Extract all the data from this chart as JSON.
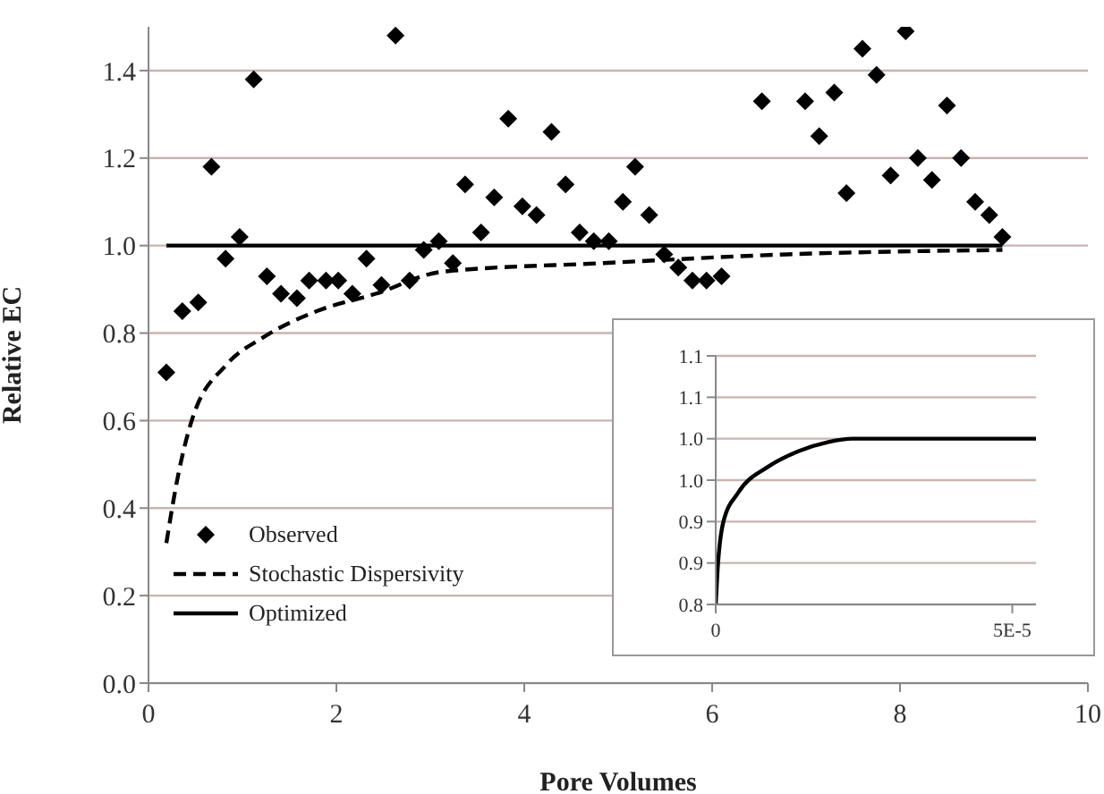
{
  "chart_data": [
    {
      "type": "scatter",
      "xlabel": "Pore Volumes",
      "ylabel": "Relative  EC",
      "xlim": [
        0,
        10
      ],
      "xticks": [
        0,
        2,
        4,
        6,
        8,
        10
      ],
      "ylim": [
        0,
        1.5
      ],
      "yticks": [
        {
          "value": 0,
          "label": "0.0"
        },
        {
          "value": 0.2,
          "label": "0.2"
        },
        {
          "value": 0.4,
          "label": "0.4"
        },
        {
          "value": 0.6,
          "label": "0.6"
        },
        {
          "value": 0.8,
          "label": "0.8"
        },
        {
          "value": 1,
          "label": "1.0"
        },
        {
          "value": 1.2,
          "label": "1.2"
        },
        {
          "value": 1.4,
          "label": "1.4"
        }
      ],
      "grid": "y",
      "legend": "bottom left",
      "series": [
        {
          "name": "Observed",
          "marker": "diamond",
          "color": "#000000",
          "x": [
            0.19,
            0.36,
            0.53,
            0.67,
            0.82,
            0.97,
            1.12,
            1.26,
            1.41,
            1.58,
            1.71,
            1.89,
            2.02,
            2.17,
            2.32,
            2.48,
            2.63,
            2.78,
            2.93,
            3.09,
            3.24,
            3.37,
            3.54,
            3.68,
            3.83,
            3.98,
            4.13,
            4.29,
            4.44,
            4.59,
            4.74,
            4.9,
            5.05,
            5.18,
            5.33,
            5.49,
            5.64,
            5.79,
            5.94,
            6.1,
            6.53,
            6.99,
            7.14,
            7.3,
            7.43,
            7.6,
            7.75,
            7.9,
            8.06,
            8.19,
            8.34,
            8.5,
            8.65,
            8.8,
            8.95,
            9.09
          ],
          "values": [
            0.71,
            0.85,
            0.87,
            1.18,
            0.97,
            1.02,
            1.38,
            0.93,
            0.89,
            0.88,
            0.92,
            0.92,
            0.92,
            0.89,
            0.97,
            0.91,
            1.48,
            0.92,
            0.99,
            1.01,
            0.96,
            1.14,
            1.03,
            1.11,
            1.29,
            1.09,
            1.07,
            1.26,
            1.14,
            1.03,
            1.01,
            1.01,
            1.1,
            1.18,
            1.07,
            0.98,
            0.95,
            0.92,
            0.92,
            0.93,
            1.33,
            1.33,
            1.25,
            1.35,
            1.12,
            1.45,
            1.39,
            1.16,
            1.49,
            1.2,
            1.15,
            1.32,
            1.2,
            1.1,
            1.07,
            1.02
          ]
        },
        {
          "name": "Stochastic Dispersivity",
          "type": "line",
          "line_style": "dashed",
          "marker": "none",
          "color": "#000000",
          "x": [
            0.19,
            0.32,
            0.46,
            0.84,
            1.22,
            1.79,
            2.42,
            3.12,
            4.84,
            6.8,
            9.09
          ],
          "values": [
            0.32,
            0.48,
            0.6,
            0.73,
            0.79,
            0.85,
            0.89,
            0.94,
            0.96,
            0.98,
            0.99
          ]
        },
        {
          "name": "Optimized",
          "type": "line",
          "line_style": "solid",
          "marker": "none",
          "color": "#000000",
          "x": [
            0.19,
            9.09
          ],
          "values": [
            1,
            1
          ]
        }
      ]
    },
    {
      "type": "line",
      "xlim": [
        0,
        5.4e-05
      ],
      "xticks": [
        0,
        {
          "value": 5e-05,
          "label": "5E-5"
        }
      ],
      "ylim": [
        0.8,
        1.1
      ],
      "yticks": [
        {
          "value": 0.8,
          "label": "0.8"
        },
        {
          "value": 0.85,
          "label": "0.9"
        },
        {
          "value": 0.9,
          "label": "0.9"
        },
        {
          "value": 0.95,
          "label": "1.0"
        },
        {
          "value": 1,
          "label": "1.0"
        },
        {
          "value": 1.05,
          "label": "1.1"
        },
        {
          "value": 1.1,
          "label": "1.1"
        }
      ],
      "grid": "y",
      "series": [
        {
          "line_style": "solid",
          "marker": "none",
          "color": "#000000",
          "x": [
            0,
            3e-07,
            1.3e-06,
            3.8e-06,
            8.8e-06,
            1.4e-05,
            1.9e-05,
            2.3e-05,
            5.4e-05
          ],
          "values": [
            0.8,
            0.84,
            0.9,
            0.935,
            0.966,
            0.985,
            0.996,
            1,
            1
          ]
        }
      ]
    }
  ]
}
